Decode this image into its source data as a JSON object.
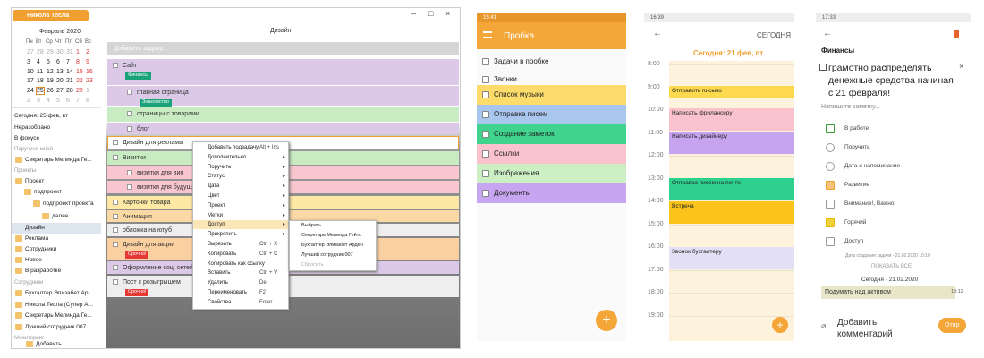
{
  "desktop": {
    "user": "Никола Тесла",
    "calendar": {
      "month": "Февраль 2020",
      "weekdays": [
        "Пн",
        "Вт",
        "Ср",
        "Чт",
        "Пт",
        "Сб",
        "Вс"
      ],
      "days": [
        [
          "27",
          "28",
          "29",
          "30",
          "31",
          "1",
          "2"
        ],
        [
          "3",
          "4",
          "5",
          "6",
          "7",
          "8",
          "9"
        ],
        [
          "10",
          "11",
          "12",
          "13",
          "14",
          "15",
          "16"
        ],
        [
          "17",
          "18",
          "19",
          "20",
          "21",
          "22",
          "23"
        ],
        [
          "24",
          "25",
          "26",
          "27",
          "28",
          "29",
          "1"
        ],
        [
          "2",
          "3",
          "4",
          "5",
          "6",
          "7",
          "8"
        ]
      ]
    },
    "sidebar": [
      "Сегодня: 25 фев, вт",
      "Неразобрано",
      "В фокусе",
      "Поручено мной",
      "Секретарь Мелинда Ге...",
      "Проекты",
      "Проект",
      "подпроект",
      "подпроект проекта",
      "далее",
      "Дизайн",
      "Реклама",
      "Сотрудники",
      "Новое",
      "В разработке",
      "Сотрудники",
      "Бухгалтер Элизабет Ар...",
      "Никола Тесла (Супер А...",
      "Секретарь Мелинда Ге...",
      "Лучший сотрудник 007",
      "Мониторинг",
      "Добавить..."
    ],
    "header": "Дизайн",
    "add_task": "Добавить задачу...",
    "tasks": [
      {
        "label": "Сайт",
        "tag": "Финансы"
      },
      {
        "label": "главная страница",
        "tag": "Знакомство"
      },
      {
        "label": "страницы с товарами"
      },
      {
        "label": "блог"
      },
      {
        "label": "Дизайн для рекламы"
      },
      {
        "label": "Визитки"
      },
      {
        "label": "визитки для вип"
      },
      {
        "label": "визитки для будущи..."
      },
      {
        "label": "Карточки товара"
      },
      {
        "label": "Анимация"
      },
      {
        "label": "обложка на ютуб"
      },
      {
        "label": "Дизайн для акции",
        "tag": "Срочно!"
      },
      {
        "label": "Оформление соц. сетей"
      },
      {
        "label": "Пост с розыгрышем",
        "tag": "Срочно!"
      }
    ],
    "context_menu": [
      {
        "label": "Добавить подзадачу",
        "shortcut": "Alt + Ins"
      },
      {
        "label": "Дополнительно"
      },
      {
        "label": "Поручить"
      },
      {
        "label": "Статус"
      },
      {
        "label": "Дата"
      },
      {
        "label": "Цвет"
      },
      {
        "label": "Проект"
      },
      {
        "label": "Метки"
      },
      {
        "label": "Доступ"
      },
      {
        "label": "Прикрепить"
      },
      {
        "label": "Вырезать",
        "shortcut": "Ctrl + X"
      },
      {
        "label": "Копировать",
        "shortcut": "Ctrl + C"
      },
      {
        "label": "Копировать как ссылку"
      },
      {
        "label": "Вставить",
        "shortcut": "Ctrl + V"
      },
      {
        "label": "Удалить",
        "shortcut": "Del"
      },
      {
        "label": "Переименовать",
        "shortcut": "F2"
      },
      {
        "label": "Свойства",
        "shortcut": "Enter"
      }
    ],
    "submenu": [
      "Выбрать...",
      "Секретарь Мелинда Гейтс",
      "Бухгалтер Элизабет Арден",
      "Лучший сотрудник 007",
      "Сбросить"
    ]
  },
  "phone_inbox": {
    "time": "15:41",
    "title": "Пробка",
    "items": [
      "Задачи в пробке",
      "Звонки",
      "Список музыки",
      "Отправка писем",
      "Создание заметок",
      "Ссылки",
      "Изображения",
      "Документы"
    ]
  },
  "phone_today": {
    "time": "16:39",
    "title": "СЕГОДНЯ",
    "date": "Сегодня: 21 фев, пт",
    "hours": [
      "8:00",
      "9:00",
      "10:00",
      "11:00",
      "12:00",
      "13:00",
      "14:00",
      "15:00",
      "16:00",
      "17:00",
      "18:00",
      "19:00"
    ],
    "events": [
      "Отправить письмо",
      "Написать фрилансеру",
      "Написать дизайнеру",
      "Отправка писем на почте",
      "Встреча",
      "Звонок бухгалтеру"
    ]
  },
  "phone_task": {
    "time": "17:33",
    "list": "Финансы",
    "task": "грамотно распределять денежные средства начиная с 21 февраля!",
    "note_placeholder": "Напишите заметку...",
    "properties": [
      "В работе",
      "Поручить",
      "Дата и напоминание",
      "Развитие",
      "Внимание!, Важно!",
      "Горячий",
      "Доступ"
    ],
    "created": "Дата создания задачи - 21.02.2020 10:10",
    "show_all": "ПОКАЗАТЬ ВСЕ",
    "day": "Сегодня - 21.02.2020",
    "comment": "Подумать над активом",
    "comment_time": "18:12",
    "add_comment": "Добавить комментарий",
    "send": "Отпр"
  }
}
